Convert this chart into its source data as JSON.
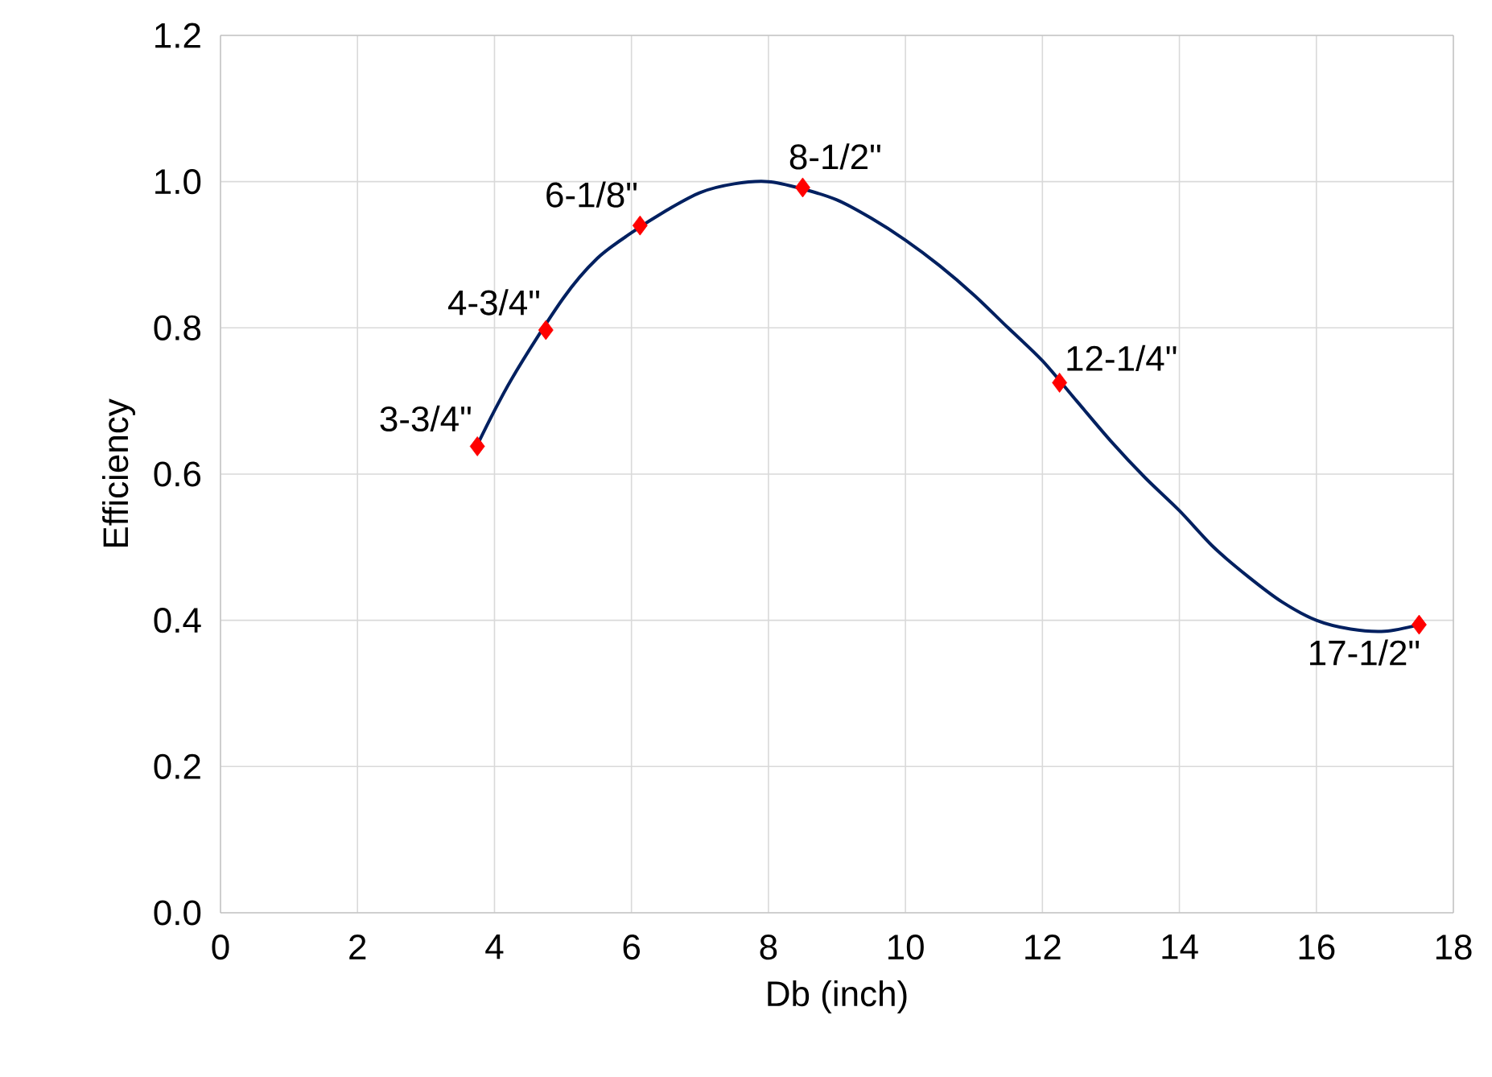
{
  "chart_data": {
    "type": "scatter",
    "xlabel": "Db (inch)",
    "ylabel": "Efficiency",
    "xlim": [
      0,
      18
    ],
    "ylim": [
      0,
      1.2
    ],
    "xticks": [
      0,
      2,
      4,
      6,
      8,
      10,
      12,
      14,
      16,
      18
    ],
    "yticks": [
      {
        "value": 0,
        "label": "0.0"
      },
      {
        "value": 0.2,
        "label": "0.2"
      },
      {
        "value": 0.4,
        "label": "0.4"
      },
      {
        "value": 0.6,
        "label": "0.6"
      },
      {
        "value": 0.8,
        "label": "0.8"
      },
      {
        "value": 1.0,
        "label": "1.0"
      },
      {
        "value": 1.2,
        "label": "1.2"
      }
    ],
    "grid": true,
    "series": [
      {
        "type": "line",
        "color": "#002060",
        "marker": "none",
        "line_style": "solid",
        "x": [
          3.75,
          4.25,
          5,
          5.5,
          6,
          6.5,
          7,
          7.5,
          8,
          8.5,
          9,
          9.5,
          10,
          10.5,
          11,
          11.5,
          12,
          12.5,
          13,
          13.5,
          14,
          14.5,
          15,
          15.5,
          16,
          16.5,
          17,
          17.5
        ],
        "values": [
          0.64,
          0.73,
          0.84,
          0.895,
          0.93,
          0.96,
          0.985,
          0.997,
          1.0,
          0.99,
          0.975,
          0.95,
          0.92,
          0.885,
          0.845,
          0.8,
          0.755,
          0.7,
          0.645,
          0.595,
          0.55,
          0.5,
          0.46,
          0.425,
          0.4,
          0.388,
          0.385,
          0.394
        ]
      },
      {
        "color": "#ff0000",
        "marker": "diamond",
        "x": [
          3.75,
          4.75,
          6.125,
          8.5,
          12.25,
          17.5
        ],
        "values": [
          0.638,
          0.797,
          0.94,
          0.992,
          0.725,
          0.394
        ]
      }
    ],
    "annotations": [
      {
        "text": "3-3/4\"",
        "x": 3.75,
        "y": 0.638
      },
      {
        "text": "4-3/4\"",
        "x": 4.75,
        "y": 0.797
      },
      {
        "text": "6-1/8\"",
        "x": 6.125,
        "y": 0.94
      },
      {
        "text": "8-1/2\"",
        "x": 8.5,
        "y": 0.992
      },
      {
        "text": "12-1/4\"",
        "x": 12.25,
        "y": 0.725
      },
      {
        "text": "17-1/2\"",
        "x": 17.5,
        "y": 0.394
      }
    ]
  }
}
